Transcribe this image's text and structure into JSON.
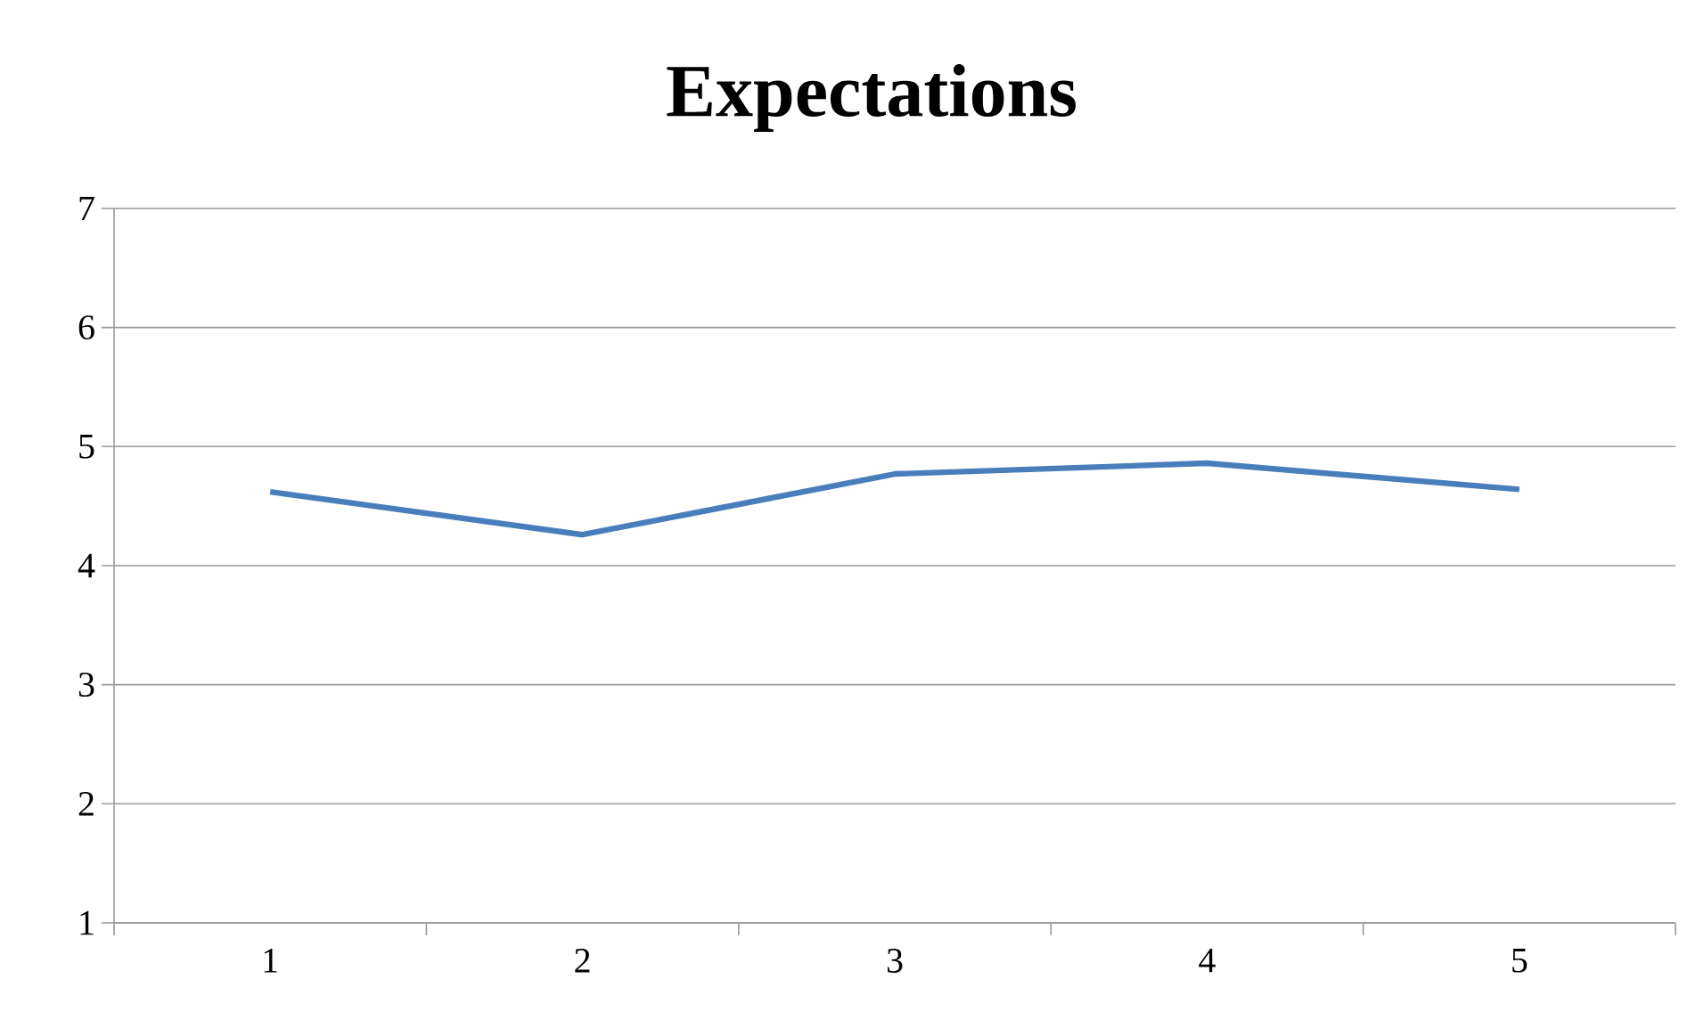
{
  "chart_data": {
    "type": "line",
    "title": "Expectations",
    "categories": [
      "1",
      "2",
      "3",
      "4",
      "5"
    ],
    "series": [
      {
        "color": "#4a7ebb",
        "values": [
          4.62,
          4.26,
          4.77,
          4.86,
          4.64
        ]
      }
    ],
    "ylim": [
      1,
      7
    ],
    "yticks": [
      1,
      2,
      3,
      4,
      5,
      6,
      7
    ],
    "grid": "y",
    "marker": "none",
    "line_style": "solid"
  }
}
